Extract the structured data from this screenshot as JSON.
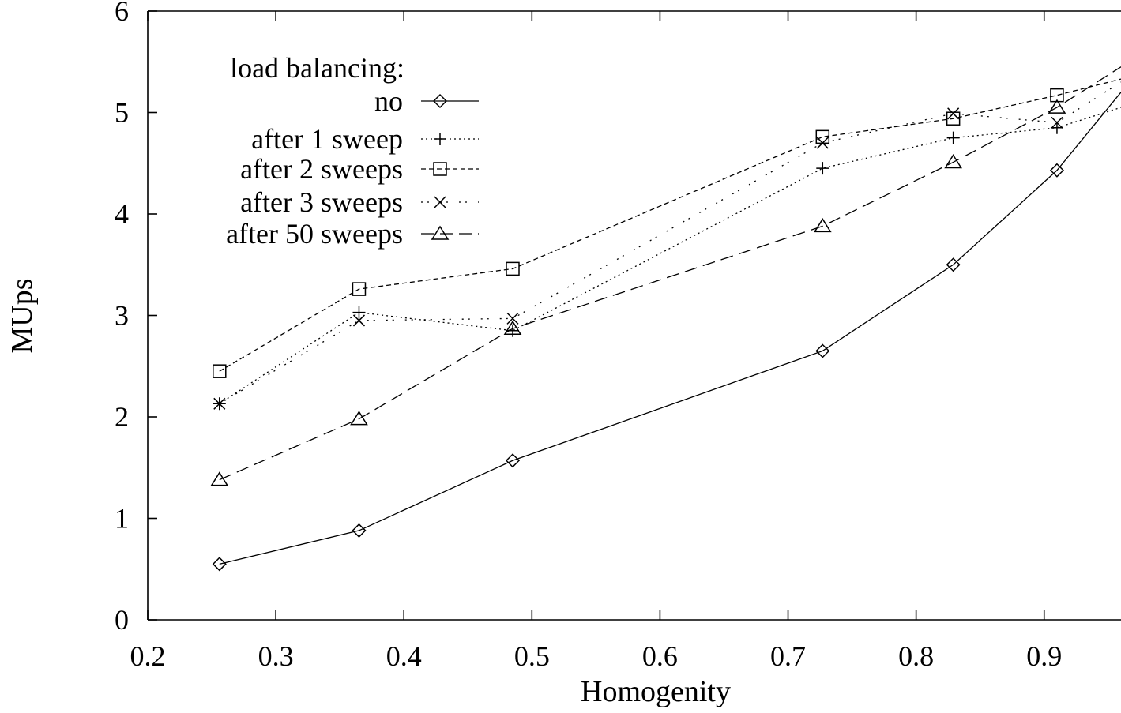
{
  "chart_data": {
    "type": "line",
    "title": "",
    "xlabel": "Homogenity",
    "ylabel": "MUps",
    "xlim": [
      0.2,
      0.96
    ],
    "ylim": [
      0,
      6
    ],
    "x_ticks": [
      "0.2",
      "0.3",
      "0.4",
      "0.5",
      "0.6",
      "0.7",
      "0.8",
      "0.9"
    ],
    "y_ticks": [
      "0",
      "1",
      "2",
      "3",
      "4",
      "5",
      "6"
    ],
    "grid": false,
    "legend_title": "load balancing:",
    "legend_position": "top-left",
    "series": [
      {
        "name": "no",
        "marker": "diamond",
        "dash": "solid",
        "points": [
          [
            0.256,
            0.55
          ],
          [
            0.365,
            0.88
          ],
          [
            0.485,
            1.57
          ],
          [
            0.727,
            2.65
          ],
          [
            0.829,
            3.5
          ],
          [
            0.91,
            4.43
          ],
          [
            0.96,
            5.2
          ]
        ]
      },
      {
        "name": "after 1 sweep",
        "marker": "plus",
        "dash": "dotted",
        "points": [
          [
            0.256,
            2.13
          ],
          [
            0.365,
            3.03
          ],
          [
            0.485,
            2.85
          ],
          [
            0.727,
            4.45
          ],
          [
            0.829,
            4.75
          ],
          [
            0.91,
            4.85
          ],
          [
            0.96,
            5.05
          ]
        ]
      },
      {
        "name": "after 2 sweeps",
        "marker": "square",
        "dash": "short-dash",
        "points": [
          [
            0.256,
            2.45
          ],
          [
            0.365,
            3.26
          ],
          [
            0.485,
            3.46
          ],
          [
            0.727,
            4.76
          ],
          [
            0.829,
            4.94
          ],
          [
            0.91,
            5.17
          ],
          [
            0.96,
            5.33
          ]
        ]
      },
      {
        "name": "after 3 sweeps",
        "marker": "x",
        "dash": "dash-dot",
        "points": [
          [
            0.256,
            2.13
          ],
          [
            0.365,
            2.95
          ],
          [
            0.485,
            2.97
          ],
          [
            0.727,
            4.7
          ],
          [
            0.829,
            4.99
          ],
          [
            0.91,
            4.9
          ],
          [
            0.96,
            5.3
          ]
        ]
      },
      {
        "name": "after 50 sweeps",
        "marker": "triangle",
        "dash": "long-dash",
        "points": [
          [
            0.256,
            1.38
          ],
          [
            0.365,
            1.98
          ],
          [
            0.485,
            2.87
          ],
          [
            0.727,
            3.88
          ],
          [
            0.829,
            4.51
          ],
          [
            0.91,
            5.05
          ],
          [
            0.96,
            5.45
          ]
        ]
      }
    ]
  }
}
